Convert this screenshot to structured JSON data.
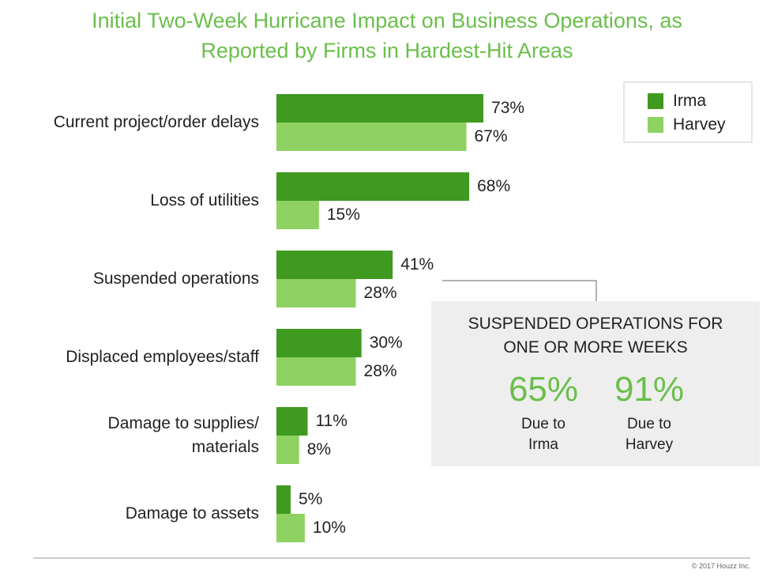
{
  "chart_data": {
    "type": "bar",
    "orientation": "horizontal",
    "title": "Initial Two-Week Hurricane Impact on Business Operations, as\nReported by Firms in Hardest-Hit Areas",
    "categories": [
      "Current project/order delays",
      "Loss of utilities",
      "Suspended operations",
      "Displaced employees/staff",
      "Damage to supplies/\nmaterials",
      "Damage to assets"
    ],
    "series": [
      {
        "name": "Irma",
        "color": "#3f9a1f",
        "values": [
          73,
          68,
          41,
          30,
          11,
          5
        ],
        "value_labels": [
          "73%",
          "68%",
          "41%",
          "30%",
          "11%",
          "5%"
        ]
      },
      {
        "name": "Harvey",
        "color": "#8fd162",
        "values": [
          67,
          15,
          28,
          28,
          8,
          10
        ],
        "value_labels": [
          "67%",
          "15%",
          "28%",
          "28%",
          "8%",
          "10%"
        ]
      }
    ],
    "xlim": [
      0,
      100
    ],
    "legend": "top-right",
    "callout": {
      "title": "SUSPENDED OPERATIONS FOR\nONE OR MORE WEEKS",
      "stats": [
        {
          "text": "65%",
          "caption": "Due to\nIrma"
        },
        {
          "text": "91%",
          "caption": "Due to\nHarvey"
        }
      ]
    },
    "footer": "© 2017 Houzz Inc."
  }
}
